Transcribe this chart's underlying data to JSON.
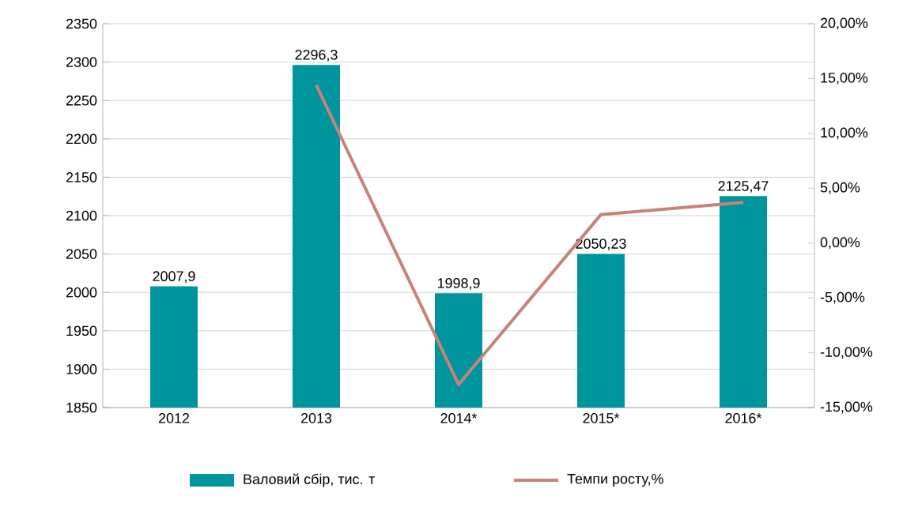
{
  "chart_data": {
    "type": "bar",
    "categories": [
      "2012",
      "2013",
      "2014*",
      "2015*",
      "2016*"
    ],
    "series": [
      {
        "name": "Валовий сбір, тис. т",
        "color": "#00959c",
        "values": [
          2007.9,
          2296.3,
          1998.9,
          2050.23,
          2125.47
        ],
        "value_labels": [
          "2007,9",
          "2296,3",
          "1998,9",
          "2050,23",
          "2125,47"
        ]
      },
      {
        "name": "Темпи росту,%",
        "type": "line",
        "axis": "y2",
        "color": "#c8827c",
        "values": [
          null,
          14.4,
          -12.9,
          2.6,
          3.7
        ]
      }
    ],
    "ylim": [
      1850,
      2350
    ],
    "yticks": [
      1850,
      1900,
      1950,
      2000,
      2050,
      2100,
      2150,
      2200,
      2250,
      2300,
      2350
    ],
    "y2lim": [
      -15,
      20
    ],
    "y2ticks": [
      {
        "value": -15,
        "label": "-15,00%"
      },
      {
        "value": -10,
        "label": "-10,00%"
      },
      {
        "value": -5,
        "label": "-5,00%"
      },
      {
        "value": 0,
        "label": "0,00%"
      },
      {
        "value": 5,
        "label": "5,00%"
      },
      {
        "value": 10,
        "label": "10,00%"
      },
      {
        "value": 15,
        "label": "15,00%"
      },
      {
        "value": 20,
        "label": "20,00%"
      }
    ],
    "grid": "y",
    "legend": "bottom"
  }
}
